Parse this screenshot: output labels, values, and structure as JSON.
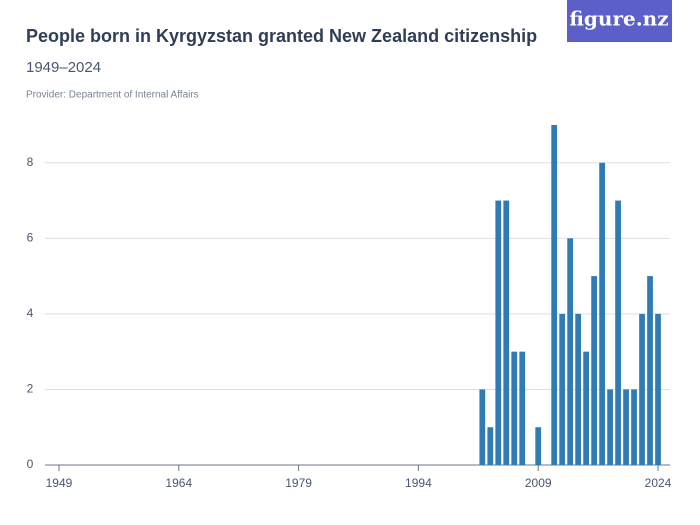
{
  "brand": "figure.nz",
  "chart_data": {
    "type": "bar",
    "title": "People born in Kyrgyzstan granted New Zealand citizenship",
    "subtitle": "1949–2024",
    "source": "Provider: Department of Internal Affairs",
    "x": [
      2002,
      2003,
      2004,
      2005,
      2006,
      2007,
      2008,
      2009,
      2010,
      2011,
      2012,
      2013,
      2014,
      2015,
      2016,
      2017,
      2018,
      2019,
      2020,
      2021,
      2022,
      2023,
      2024
    ],
    "values": [
      2,
      1,
      7,
      7,
      3,
      3,
      0,
      1,
      0,
      9,
      4,
      6,
      4,
      3,
      5,
      8,
      2,
      7,
      2,
      2,
      4,
      5,
      4
    ],
    "color": "#2e7bb6",
    "xlim": [
      1947.25,
      2025.5
    ],
    "xticks": [
      1949,
      1964,
      1979,
      1994,
      2009,
      2024
    ],
    "ylim": [
      0,
      9
    ],
    "yticks": [
      0,
      2,
      4,
      6,
      8
    ],
    "grid": true
  }
}
